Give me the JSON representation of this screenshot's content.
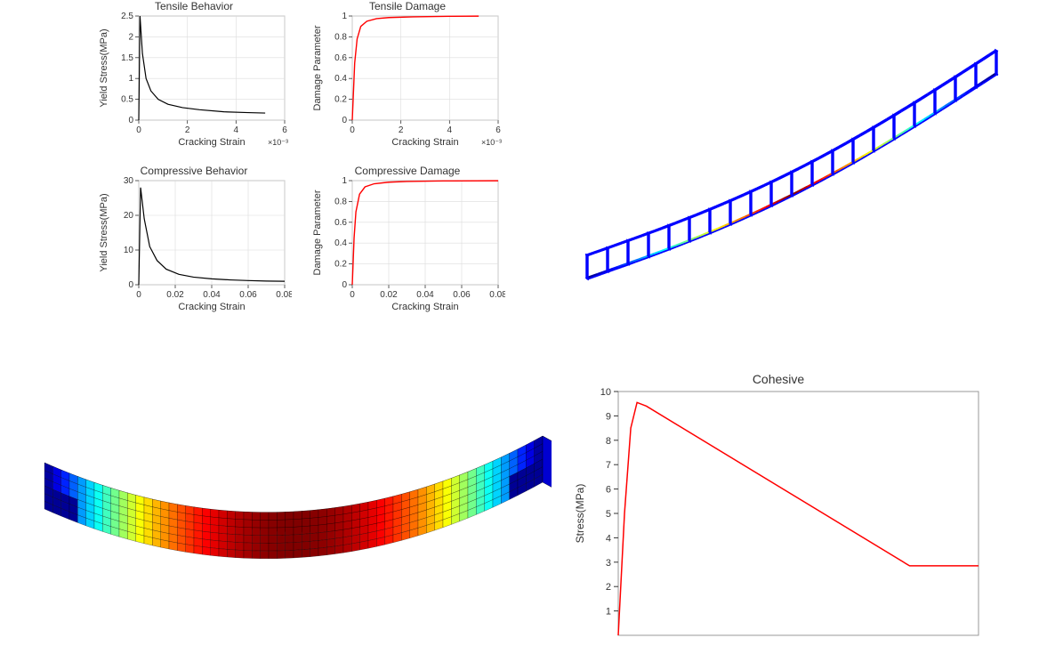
{
  "tensile_behavior": {
    "type": "line",
    "title": "Tensile Behavior",
    "xlabel": "Cracking Strain",
    "ylabel": "Yield Stress(MPa)",
    "x_exp_label": "×10⁻³",
    "xlim": [
      0,
      6
    ],
    "ylim": [
      0,
      2.5
    ],
    "xticks": [
      0,
      2,
      4,
      6
    ],
    "yticks": [
      0,
      0.5,
      1,
      1.5,
      2,
      2.5
    ],
    "line_color": "#000000",
    "line_width": 1.2,
    "grid_color": "#dcdcdc",
    "background_color": "#ffffff",
    "title_fontsize": 12,
    "label_fontsize": 11,
    "tick_fontsize": 10,
    "series": [
      {
        "x": 0.0,
        "y": 0.0
      },
      {
        "x": 0.05,
        "y": 2.5
      },
      {
        "x": 0.15,
        "y": 1.6
      },
      {
        "x": 0.3,
        "y": 1.0
      },
      {
        "x": 0.5,
        "y": 0.7
      },
      {
        "x": 0.8,
        "y": 0.5
      },
      {
        "x": 1.2,
        "y": 0.38
      },
      {
        "x": 1.8,
        "y": 0.3
      },
      {
        "x": 2.5,
        "y": 0.25
      },
      {
        "x": 3.5,
        "y": 0.2
      },
      {
        "x": 4.5,
        "y": 0.18
      },
      {
        "x": 5.2,
        "y": 0.17
      }
    ]
  },
  "tensile_damage": {
    "type": "line",
    "title": "Tensile Damage",
    "xlabel": "Cracking Strain",
    "ylabel": "Damage Parameter",
    "x_exp_label": "×10⁻³",
    "xlim": [
      0,
      6
    ],
    "ylim": [
      0,
      1
    ],
    "xticks": [
      0,
      2,
      4,
      6
    ],
    "yticks": [
      0,
      0.2,
      0.4,
      0.6,
      0.8,
      1
    ],
    "line_color": "#ff0000",
    "line_width": 1.4,
    "grid_color": "#dcdcdc",
    "background_color": "#ffffff",
    "title_fontsize": 12,
    "label_fontsize": 11,
    "tick_fontsize": 10,
    "series": [
      {
        "x": 0.0,
        "y": 0.0
      },
      {
        "x": 0.1,
        "y": 0.55
      },
      {
        "x": 0.2,
        "y": 0.78
      },
      {
        "x": 0.35,
        "y": 0.9
      },
      {
        "x": 0.6,
        "y": 0.95
      },
      {
        "x": 1.0,
        "y": 0.975
      },
      {
        "x": 1.5,
        "y": 0.985
      },
      {
        "x": 2.5,
        "y": 0.992
      },
      {
        "x": 4.0,
        "y": 0.997
      },
      {
        "x": 5.2,
        "y": 0.999
      }
    ]
  },
  "compressive_behavior": {
    "type": "line",
    "title": "Compressive Behavior",
    "xlabel": "Cracking Strain",
    "ylabel": "Yield Stress(MPa)",
    "xlim": [
      0,
      0.08
    ],
    "ylim": [
      0,
      30
    ],
    "xticks": [
      0,
      0.02,
      0.04,
      0.06,
      0.08
    ],
    "yticks": [
      0,
      10,
      20,
      30
    ],
    "line_color": "#000000",
    "line_width": 1.2,
    "grid_color": "#dcdcdc",
    "background_color": "#ffffff",
    "title_fontsize": 12,
    "label_fontsize": 11,
    "tick_fontsize": 10,
    "series": [
      {
        "x": 0.0,
        "y": 0
      },
      {
        "x": 0.001,
        "y": 28
      },
      {
        "x": 0.003,
        "y": 19
      },
      {
        "x": 0.006,
        "y": 11
      },
      {
        "x": 0.01,
        "y": 7
      },
      {
        "x": 0.015,
        "y": 4.5
      },
      {
        "x": 0.022,
        "y": 3
      },
      {
        "x": 0.03,
        "y": 2.2
      },
      {
        "x": 0.04,
        "y": 1.7
      },
      {
        "x": 0.05,
        "y": 1.4
      },
      {
        "x": 0.06,
        "y": 1.2
      },
      {
        "x": 0.07,
        "y": 1.05
      },
      {
        "x": 0.08,
        "y": 1.0
      }
    ]
  },
  "compressive_damage": {
    "type": "line",
    "title": "Compressive Damage",
    "xlabel": "Cracking Strain",
    "ylabel": "Damage Parameter",
    "xlim": [
      0,
      0.08
    ],
    "ylim": [
      0,
      1
    ],
    "xticks": [
      0,
      0.02,
      0.04,
      0.06,
      0.08
    ],
    "yticks": [
      0,
      0.2,
      0.4,
      0.6,
      0.8,
      1
    ],
    "line_color": "#ff0000",
    "line_width": 1.4,
    "grid_color": "#dcdcdc",
    "background_color": "#ffffff",
    "title_fontsize": 12,
    "label_fontsize": 11,
    "tick_fontsize": 10,
    "series": [
      {
        "x": 0.0,
        "y": 0.0
      },
      {
        "x": 0.001,
        "y": 0.45
      },
      {
        "x": 0.002,
        "y": 0.7
      },
      {
        "x": 0.004,
        "y": 0.87
      },
      {
        "x": 0.007,
        "y": 0.94
      },
      {
        "x": 0.012,
        "y": 0.97
      },
      {
        "x": 0.02,
        "y": 0.985
      },
      {
        "x": 0.03,
        "y": 0.992
      },
      {
        "x": 0.05,
        "y": 0.997
      },
      {
        "x": 0.08,
        "y": 0.999
      }
    ]
  },
  "cohesive": {
    "type": "line",
    "title": "Cohesive",
    "xlabel": "",
    "ylabel": "Stress(MPa)",
    "xlim": [
      0,
      1.15
    ],
    "ylim": [
      0,
      10
    ],
    "xticks": [],
    "yticks": [
      1,
      2,
      3,
      4,
      5,
      6,
      7,
      8,
      9,
      10
    ],
    "line_color": "#ff0000",
    "line_width": 1.5,
    "grid_color": "none",
    "background_color": "#ffffff",
    "border_color": "#999999",
    "title_fontsize": 14,
    "label_fontsize": 12,
    "tick_fontsize": 11,
    "series": [
      {
        "x": 0.0,
        "y": 0.0
      },
      {
        "x": 0.02,
        "y": 5.0
      },
      {
        "x": 0.04,
        "y": 8.5
      },
      {
        "x": 0.06,
        "y": 9.55
      },
      {
        "x": 0.09,
        "y": 9.4
      },
      {
        "x": 0.93,
        "y": 2.85
      },
      {
        "x": 1.15,
        "y": 2.85
      }
    ]
  },
  "rebar_cage": {
    "type": "3d-wireframe",
    "description": "Deformed reinforcement cage (longitudinal bars + stirrups)",
    "n_stirrups": 21,
    "longitudinal_bars_per_face": 2,
    "deflection_direction": "upward-bow",
    "colormap": "jet",
    "color_samples": [
      "#0000ff",
      "#0080ff",
      "#00ffff",
      "#00ff80",
      "#80ff00",
      "#ffff00",
      "#ff8000",
      "#ff0000"
    ],
    "bar_color_default": "#0000ff",
    "high_stress_color": "#ff0000",
    "line_width": 2.0,
    "view": "isometric"
  },
  "beam_mesh": {
    "type": "3d-fe-mesh",
    "description": "Deformed concrete beam mesh with stress contour",
    "nx": 60,
    "ny": 6,
    "nz": 6,
    "colormap": "jet",
    "contour_colors": [
      "#0000a0",
      "#0040ff",
      "#00a0ff",
      "#00ffff",
      "#40ff80",
      "#a0ff40",
      "#ffff00",
      "#ff8000",
      "#ff2000",
      "#c00000"
    ],
    "mesh_line_color": "#000000",
    "end_color": "#0040ff",
    "mid_color": "#d00000",
    "deflection_direction": "sagging",
    "view": "isometric"
  }
}
